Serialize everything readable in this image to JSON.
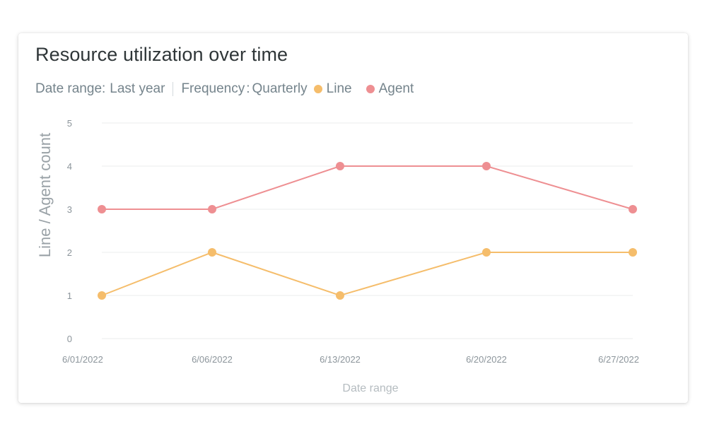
{
  "card": {
    "title": "Resource utilization over time",
    "date_range_label": "Date range:",
    "date_range_value": "Last year",
    "frequency_label": "Frequency",
    "frequency_value": "Quarterly"
  },
  "chart_data": {
    "type": "line",
    "x": [
      "6/01/2022",
      "6/06/2022",
      "6/13/2022",
      "6/20/2022",
      "6/27/2022"
    ],
    "series": [
      {
        "name": "Line",
        "color": "#f5bd6b",
        "values": [
          1,
          2,
          1,
          2,
          2
        ]
      },
      {
        "name": "Agent",
        "color": "#ee8f92",
        "values": [
          3,
          3,
          4,
          4,
          3
        ]
      }
    ],
    "xlabel": "Date range",
    "ylabel": "Line / Agent count",
    "ylim": [
      0,
      5
    ],
    "yticks": [
      0,
      1,
      2,
      3,
      4,
      5
    ],
    "grid": true,
    "legend": "top-left"
  }
}
